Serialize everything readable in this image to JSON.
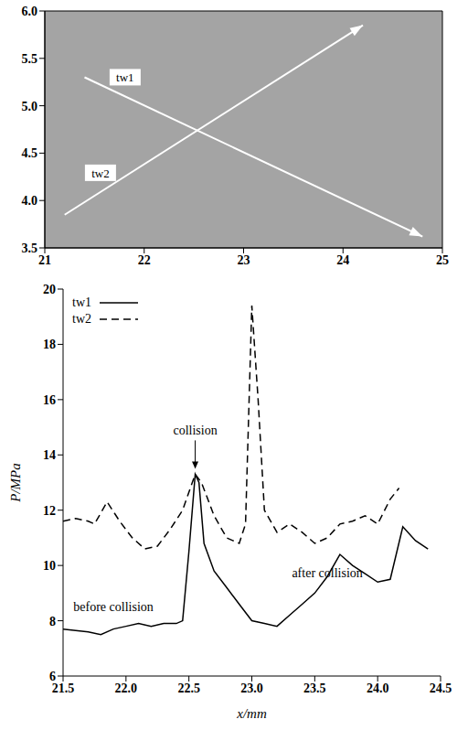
{
  "chart_data": [
    {
      "type": "line",
      "xlim": [
        21,
        25
      ],
      "ylim": [
        3.5,
        6.0
      ],
      "xticks": [
        21,
        22,
        23,
        24,
        25
      ],
      "yticks": [
        3.5,
        {
          "value": 4,
          "label": "4.0"
        },
        4.5,
        {
          "value": 5,
          "label": "5.0"
        },
        5.5,
        {
          "value": 6,
          "label": "6.0"
        }
      ],
      "color": "#a4a4a4",
      "series": [
        {
          "name": "tw1",
          "color": "#ffffff",
          "marker": "arrow",
          "x": [
            21.4,
            24.8
          ],
          "values": [
            5.3,
            3.62
          ]
        },
        {
          "name": "tw2",
          "color": "#ffffff",
          "marker": "arrow",
          "x": [
            21.2,
            24.2
          ],
          "values": [
            3.85,
            5.85
          ]
        }
      ]
    },
    {
      "type": "line",
      "xlabel": "x/mm",
      "ylabel": "P/MPa",
      "xlim": [
        21.5,
        24.5
      ],
      "ylim": [
        6,
        20
      ],
      "xticks": [
        21.5,
        {
          "value": 22,
          "label": "22.0"
        },
        22.5,
        {
          "value": 23,
          "label": "23.0"
        },
        23.5,
        {
          "value": 24,
          "label": "24.0"
        },
        24.5
      ],
      "yticks": [
        6,
        8,
        10,
        12,
        14,
        16,
        18,
        20
      ],
      "legend": "top-left",
      "series": [
        {
          "name": "tw1",
          "color": "#000000",
          "line_style": "solid",
          "x": [
            21.5,
            21.6,
            21.7,
            21.8,
            21.9,
            22.0,
            22.1,
            22.2,
            22.3,
            22.4,
            22.45,
            22.5,
            22.55,
            22.58,
            22.62,
            22.7,
            22.8,
            22.9,
            23.0,
            23.1,
            23.2,
            23.3,
            23.4,
            23.5,
            23.6,
            23.7,
            23.8,
            23.9,
            24.0,
            24.1,
            24.2,
            24.3,
            24.4
          ],
          "values": [
            7.7,
            7.65,
            7.6,
            7.5,
            7.7,
            7.8,
            7.9,
            7.8,
            7.9,
            7.9,
            8.0,
            10.5,
            13.3,
            13.0,
            10.8,
            9.8,
            9.2,
            8.6,
            8.0,
            7.9,
            7.8,
            8.2,
            8.6,
            9.0,
            9.6,
            10.4,
            10.0,
            9.7,
            9.4,
            9.5,
            11.4,
            10.9,
            10.6
          ]
        },
        {
          "name": "tw2",
          "color": "#000000",
          "line_style": "dashed",
          "x": [
            21.5,
            21.6,
            21.7,
            21.75,
            21.85,
            21.95,
            22.05,
            22.15,
            22.25,
            22.35,
            22.45,
            22.55,
            22.6,
            22.7,
            22.8,
            22.9,
            22.95,
            23.0,
            23.05,
            23.1,
            23.2,
            23.3,
            23.4,
            23.5,
            23.6,
            23.7,
            23.8,
            23.9,
            24.0,
            24.1,
            24.17
          ],
          "values": [
            11.6,
            11.7,
            11.6,
            11.5,
            12.3,
            11.6,
            11.0,
            10.6,
            10.7,
            11.3,
            12.0,
            13.3,
            13.0,
            11.8,
            11.0,
            10.8,
            11.5,
            19.4,
            16.0,
            12.0,
            11.2,
            11.5,
            11.2,
            10.8,
            11.0,
            11.5,
            11.6,
            11.8,
            11.5,
            12.4,
            12.8
          ]
        }
      ],
      "annotations": [
        {
          "text": "collision",
          "x": 22.55,
          "y": 13.4,
          "marker": "arrow"
        },
        {
          "text": "before collision",
          "x": 21.9,
          "y": 8.5
        },
        {
          "text": "after collision",
          "x": 23.6,
          "y": 9.75
        }
      ]
    }
  ]
}
